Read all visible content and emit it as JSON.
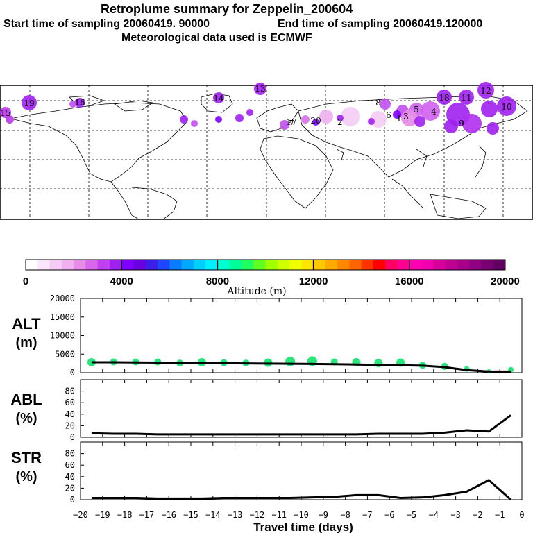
{
  "header": {
    "title": "Retroplume summary for Zeppelin_200604",
    "start_label": "Start time of sampling 20060419. 90000",
    "end_label": "End time of sampling 20060419.120000",
    "met_label": "Meteorological data used is ECMWF"
  },
  "map": {
    "plume_day_labels": [
      "19",
      "16",
      "14",
      "13",
      "11",
      "12",
      "9",
      "10",
      "1",
      "2",
      "3",
      "4",
      "5",
      "6",
      "7",
      "8",
      "15",
      "17",
      "18",
      "20"
    ]
  },
  "colorbar": {
    "title": "Altitude (m)",
    "tick_labels": [
      "0",
      "4000",
      "8000",
      "12000",
      "16000",
      "20000"
    ],
    "range": [
      0,
      20000
    ],
    "colors": [
      "#ffffff",
      "#fbe6fb",
      "#f5ccf5",
      "#eeb0ee",
      "#e68ce6",
      "#d966ec",
      "#c040f0",
      "#a020f0",
      "#8000ff",
      "#6a00e0",
      "#3c1ee8",
      "#2045ff",
      "#0a7cff",
      "#00a8ff",
      "#00d0ff",
      "#00f0ff",
      "#00ffd0",
      "#00ff99",
      "#20ff60",
      "#60ff20",
      "#a0ff00",
      "#d0ff00",
      "#f0ff00",
      "#ffe600",
      "#ffc800",
      "#ffaa00",
      "#ff8800",
      "#ff6600",
      "#ff3300",
      "#ff0000",
      "#ff0066",
      "#ff0090",
      "#ff00b0",
      "#f000b0",
      "#d8009a",
      "#c00090",
      "#a80088",
      "#900080",
      "#780070",
      "#600060"
    ]
  },
  "chart_data": [
    {
      "type": "scatter",
      "name": "ALT",
      "ylabel": "ALT (m)",
      "ylim": [
        0,
        20000
      ],
      "yticks": [
        "20000",
        "15000",
        "10000",
        "5000",
        "0"
      ],
      "x": [
        -19.5,
        -18.5,
        -17.5,
        -16.5,
        -15.5,
        -14.5,
        -13.5,
        -12.5,
        -11.5,
        -10.5,
        -9.5,
        -8.5,
        -7.5,
        -6.5,
        -5.5,
        -4.5,
        -3.5,
        -2.5,
        -1.5,
        -0.5
      ],
      "series": [
        {
          "name": "mean altitude line",
          "values": [
            2800,
            2800,
            2750,
            2700,
            2650,
            2600,
            2550,
            2500,
            2450,
            2400,
            2350,
            2300,
            2200,
            2100,
            2000,
            1900,
            1500,
            700,
            300,
            300
          ]
        },
        {
          "name": "altitude dots",
          "values": [
            2800,
            2900,
            2900,
            2900,
            2600,
            2800,
            2700,
            2600,
            2700,
            3000,
            3100,
            2900,
            2800,
            2600,
            2700,
            2000,
            1700,
            1000,
            400,
            800
          ]
        }
      ],
      "dot_sizes": [
        6,
        5,
        5,
        5,
        5,
        6,
        5,
        5,
        6,
        7,
        7,
        5,
        6,
        6,
        6,
        5,
        5,
        4,
        3,
        4
      ],
      "dot_color": "#28e67a"
    },
    {
      "type": "line",
      "name": "ABL",
      "ylabel": "ABL (%)",
      "ylim": [
        0,
        100
      ],
      "yticks": [
        "80",
        "60",
        "40",
        "20",
        "0"
      ],
      "x": [
        -19.5,
        -18.5,
        -17.5,
        -16.5,
        -15.5,
        -14.5,
        -13.5,
        -12.5,
        -11.5,
        -10.5,
        -9.5,
        -8.5,
        -7.5,
        -6.5,
        -5.5,
        -4.5,
        -3.5,
        -2.5,
        -1.5,
        -0.5
      ],
      "values": [
        7,
        6,
        6,
        5,
        5,
        5,
        5,
        5,
        5,
        5,
        5,
        5,
        5,
        6,
        6,
        6,
        8,
        12,
        10,
        38
      ]
    },
    {
      "type": "line",
      "name": "STR",
      "ylabel": "STR (%)",
      "ylim": [
        0,
        100
      ],
      "yticks": [
        "80",
        "60",
        "40",
        "20",
        "0"
      ],
      "x": [
        -19.5,
        -18.5,
        -17.5,
        -16.5,
        -15.5,
        -14.5,
        -13.5,
        -12.5,
        -11.5,
        -10.5,
        -9.5,
        -8.5,
        -7.5,
        -6.5,
        -5.5,
        -4.5,
        -3.5,
        -2.5,
        -1.5,
        -0.5
      ],
      "values": [
        3,
        3,
        3,
        2,
        2,
        2,
        3,
        3,
        3,
        3,
        4,
        5,
        8,
        8,
        3,
        4,
        8,
        14,
        34,
        0
      ]
    }
  ],
  "xaxis": {
    "title": "Travel time (days)",
    "range": [
      -20,
      0
    ],
    "tick_labels": [
      "−20",
      "−19",
      "−18",
      "−17",
      "−16",
      "−15",
      "−14",
      "−13",
      "−12",
      "−11",
      "−10",
      "−9",
      "−8",
      "−7",
      "−6",
      "−5",
      "−4",
      "−3",
      "−2",
      "−1",
      "0"
    ]
  }
}
